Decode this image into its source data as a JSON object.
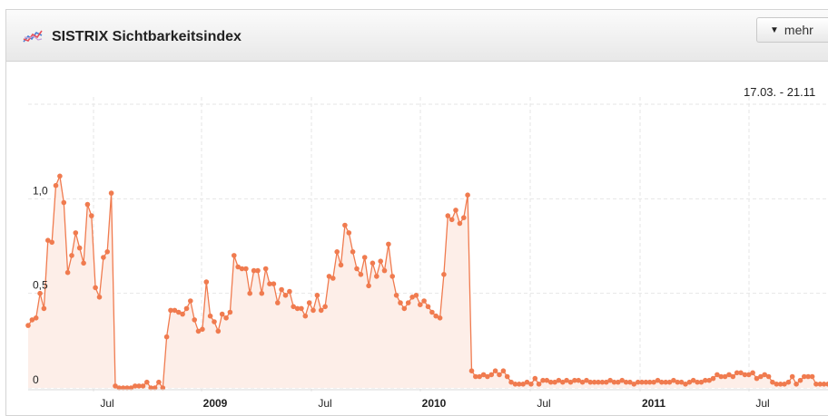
{
  "widget": {
    "title": "SISTRIX Sichtbarkeitsindex",
    "icon": "trend-line-icon",
    "more_button": "mehr",
    "date_range": "17.03. - 21.11"
  },
  "colors": {
    "line": "#f07b4f",
    "fill": "#fdeee8",
    "grid": "#e6e6e6"
  },
  "chart_data": {
    "type": "area",
    "title": "SISTRIX Sichtbarkeitsindex",
    "xlabel": "",
    "ylabel": "",
    "ylim": [
      0,
      1.5
    ],
    "x_ticks": [
      {
        "label": "Jul",
        "bold": false
      },
      {
        "label": "2009",
        "bold": true
      },
      {
        "label": "Jul",
        "bold": false
      },
      {
        "label": "2010",
        "bold": true
      },
      {
        "label": "Jul",
        "bold": false
      },
      {
        "label": "2011",
        "bold": true
      },
      {
        "label": "Jul",
        "bold": false
      }
    ],
    "y_ticks": [
      {
        "label": "0",
        "value": 0
      },
      {
        "label": "0,5",
        "value": 0.5
      },
      {
        "label": "1,0",
        "value": 1.0
      }
    ],
    "grid": true,
    "series": [
      {
        "values": [
          0.33,
          0.36,
          0.37,
          0.5,
          0.42,
          0.78,
          0.77,
          1.07,
          1.12,
          0.98,
          0.61,
          0.7,
          0.82,
          0.74,
          0.66,
          0.97,
          0.91,
          0.53,
          0.48,
          0.69,
          0.72,
          1.03,
          0.01,
          0.0,
          0.0,
          0.0,
          0.0,
          0.01,
          0.01,
          0.01,
          0.03,
          0.0,
          0.0,
          0.03,
          0.0,
          0.27,
          0.41,
          0.41,
          0.4,
          0.39,
          0.42,
          0.46,
          0.36,
          0.3,
          0.31,
          0.56,
          0.38,
          0.35,
          0.3,
          0.39,
          0.37,
          0.4,
          0.7,
          0.64,
          0.63,
          0.63,
          0.5,
          0.62,
          0.62,
          0.5,
          0.63,
          0.55,
          0.55,
          0.45,
          0.52,
          0.49,
          0.51,
          0.43,
          0.42,
          0.42,
          0.38,
          0.45,
          0.41,
          0.49,
          0.41,
          0.43,
          0.59,
          0.58,
          0.72,
          0.65,
          0.86,
          0.82,
          0.72,
          0.63,
          0.6,
          0.69,
          0.54,
          0.66,
          0.59,
          0.67,
          0.62,
          0.76,
          0.59,
          0.49,
          0.45,
          0.42,
          0.45,
          0.48,
          0.49,
          0.44,
          0.46,
          0.43,
          0.4,
          0.38,
          0.37,
          0.6,
          0.91,
          0.89,
          0.94,
          0.87,
          0.9,
          1.02,
          0.09,
          0.06,
          0.06,
          0.07,
          0.06,
          0.07,
          0.09,
          0.07,
          0.09,
          0.06,
          0.03,
          0.02,
          0.02,
          0.02,
          0.03,
          0.02,
          0.05,
          0.02,
          0.04,
          0.04,
          0.03,
          0.03,
          0.04,
          0.03,
          0.04,
          0.03,
          0.04,
          0.04,
          0.03,
          0.04,
          0.03,
          0.03,
          0.03,
          0.03,
          0.03,
          0.04,
          0.03,
          0.03,
          0.04,
          0.03,
          0.03,
          0.02,
          0.03,
          0.03,
          0.03,
          0.03,
          0.03,
          0.04,
          0.03,
          0.03,
          0.03,
          0.04,
          0.03,
          0.03,
          0.02,
          0.03,
          0.04,
          0.03,
          0.03,
          0.04,
          0.04,
          0.05,
          0.07,
          0.06,
          0.06,
          0.07,
          0.06,
          0.08,
          0.08,
          0.07,
          0.07,
          0.08,
          0.05,
          0.06,
          0.07,
          0.06,
          0.03,
          0.02,
          0.02,
          0.02,
          0.03,
          0.06,
          0.02,
          0.04,
          0.06,
          0.06,
          0.06,
          0.02,
          0.02,
          0.02,
          0.02
        ]
      }
    ]
  }
}
